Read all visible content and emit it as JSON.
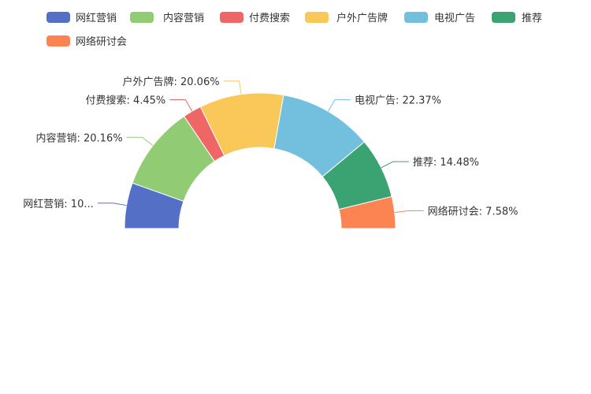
{
  "chart_data": {
    "type": "pie",
    "variant": "half-donut",
    "title": "",
    "legend_position": "top",
    "categories": [
      "网红营销",
      "内容营销",
      "付费搜索",
      "户外广告牌",
      "电视广告",
      "推荐",
      "网络研讨会"
    ],
    "values": [
      10.9,
      20.16,
      4.45,
      20.06,
      22.37,
      14.48,
      7.58
    ],
    "colors": [
      "#5470c6",
      "#91cc75",
      "#ee6666",
      "#fac858",
      "#73c0de",
      "#3ba272",
      "#fc8452"
    ],
    "labels": [
      "网红营销: 10...",
      "内容营销: 20.16%",
      "付费搜索: 4.45%",
      "户外广告牌: 20.06%",
      "电视广告: 22.37%",
      "推荐: 14.48%",
      "网络研讨会: 7.58%"
    ]
  }
}
